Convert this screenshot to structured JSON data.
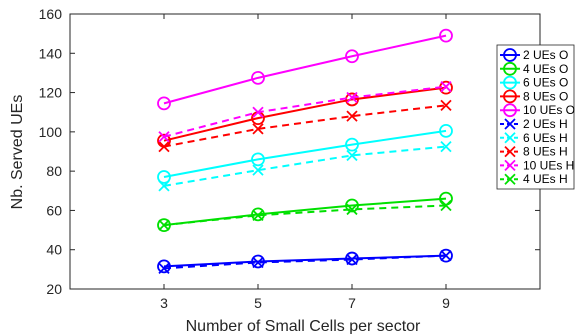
{
  "chart_data": {
    "type": "line",
    "xlabel": "Number of Small Cells per sector",
    "ylabel": "Nb. Served UEs",
    "xlim": [
      1,
      11
    ],
    "ylim": [
      20,
      160
    ],
    "xticks": [
      3,
      5,
      7,
      9
    ],
    "yticks": [
      20,
      40,
      60,
      80,
      100,
      120,
      140,
      160
    ],
    "grid": false,
    "legend_position": "right",
    "x": [
      3,
      5,
      7,
      9
    ],
    "series": [
      {
        "name": "2 UEs O",
        "values": [
          31.5,
          34,
          35.5,
          37
        ],
        "color": "#0000ff",
        "marker": "o",
        "dash": "solid"
      },
      {
        "name": "4 UEs O",
        "values": [
          52.5,
          58,
          62.5,
          66
        ],
        "color": "#00e000",
        "marker": "o",
        "dash": "solid"
      },
      {
        "name": "6 UEs O",
        "values": [
          77,
          86,
          93.5,
          100.5
        ],
        "color": "#00ffff",
        "marker": "o",
        "dash": "solid"
      },
      {
        "name": "8 UEs O",
        "values": [
          95.5,
          107,
          116.5,
          122.5
        ],
        "color": "#ff0000",
        "marker": "o",
        "dash": "solid"
      },
      {
        "name": "10 UEs O",
        "values": [
          114.5,
          127.5,
          138.5,
          149
        ],
        "color": "#ff00ff",
        "marker": "o",
        "dash": "solid"
      },
      {
        "name": "2 UEs H",
        "values": [
          30.5,
          33.5,
          35,
          37
        ],
        "color": "#0000ff",
        "marker": "x",
        "dash": "dashed"
      },
      {
        "name": "6 UEs H",
        "values": [
          72.5,
          80.5,
          88,
          92.5
        ],
        "color": "#00ffff",
        "marker": "x",
        "dash": "dashed"
      },
      {
        "name": "8 UEs H",
        "values": [
          92.5,
          101.5,
          108,
          113.5
        ],
        "color": "#ff0000",
        "marker": "x",
        "dash": "dashed"
      },
      {
        "name": "10 UEs H",
        "values": [
          97.5,
          110,
          117.5,
          123
        ],
        "color": "#ff00ff",
        "marker": "x",
        "dash": "dashed"
      },
      {
        "name": "4 UEs H",
        "values": [
          52.5,
          57.5,
          60.5,
          62.5
        ],
        "color": "#00e000",
        "marker": "x",
        "dash": "dashed"
      }
    ]
  }
}
